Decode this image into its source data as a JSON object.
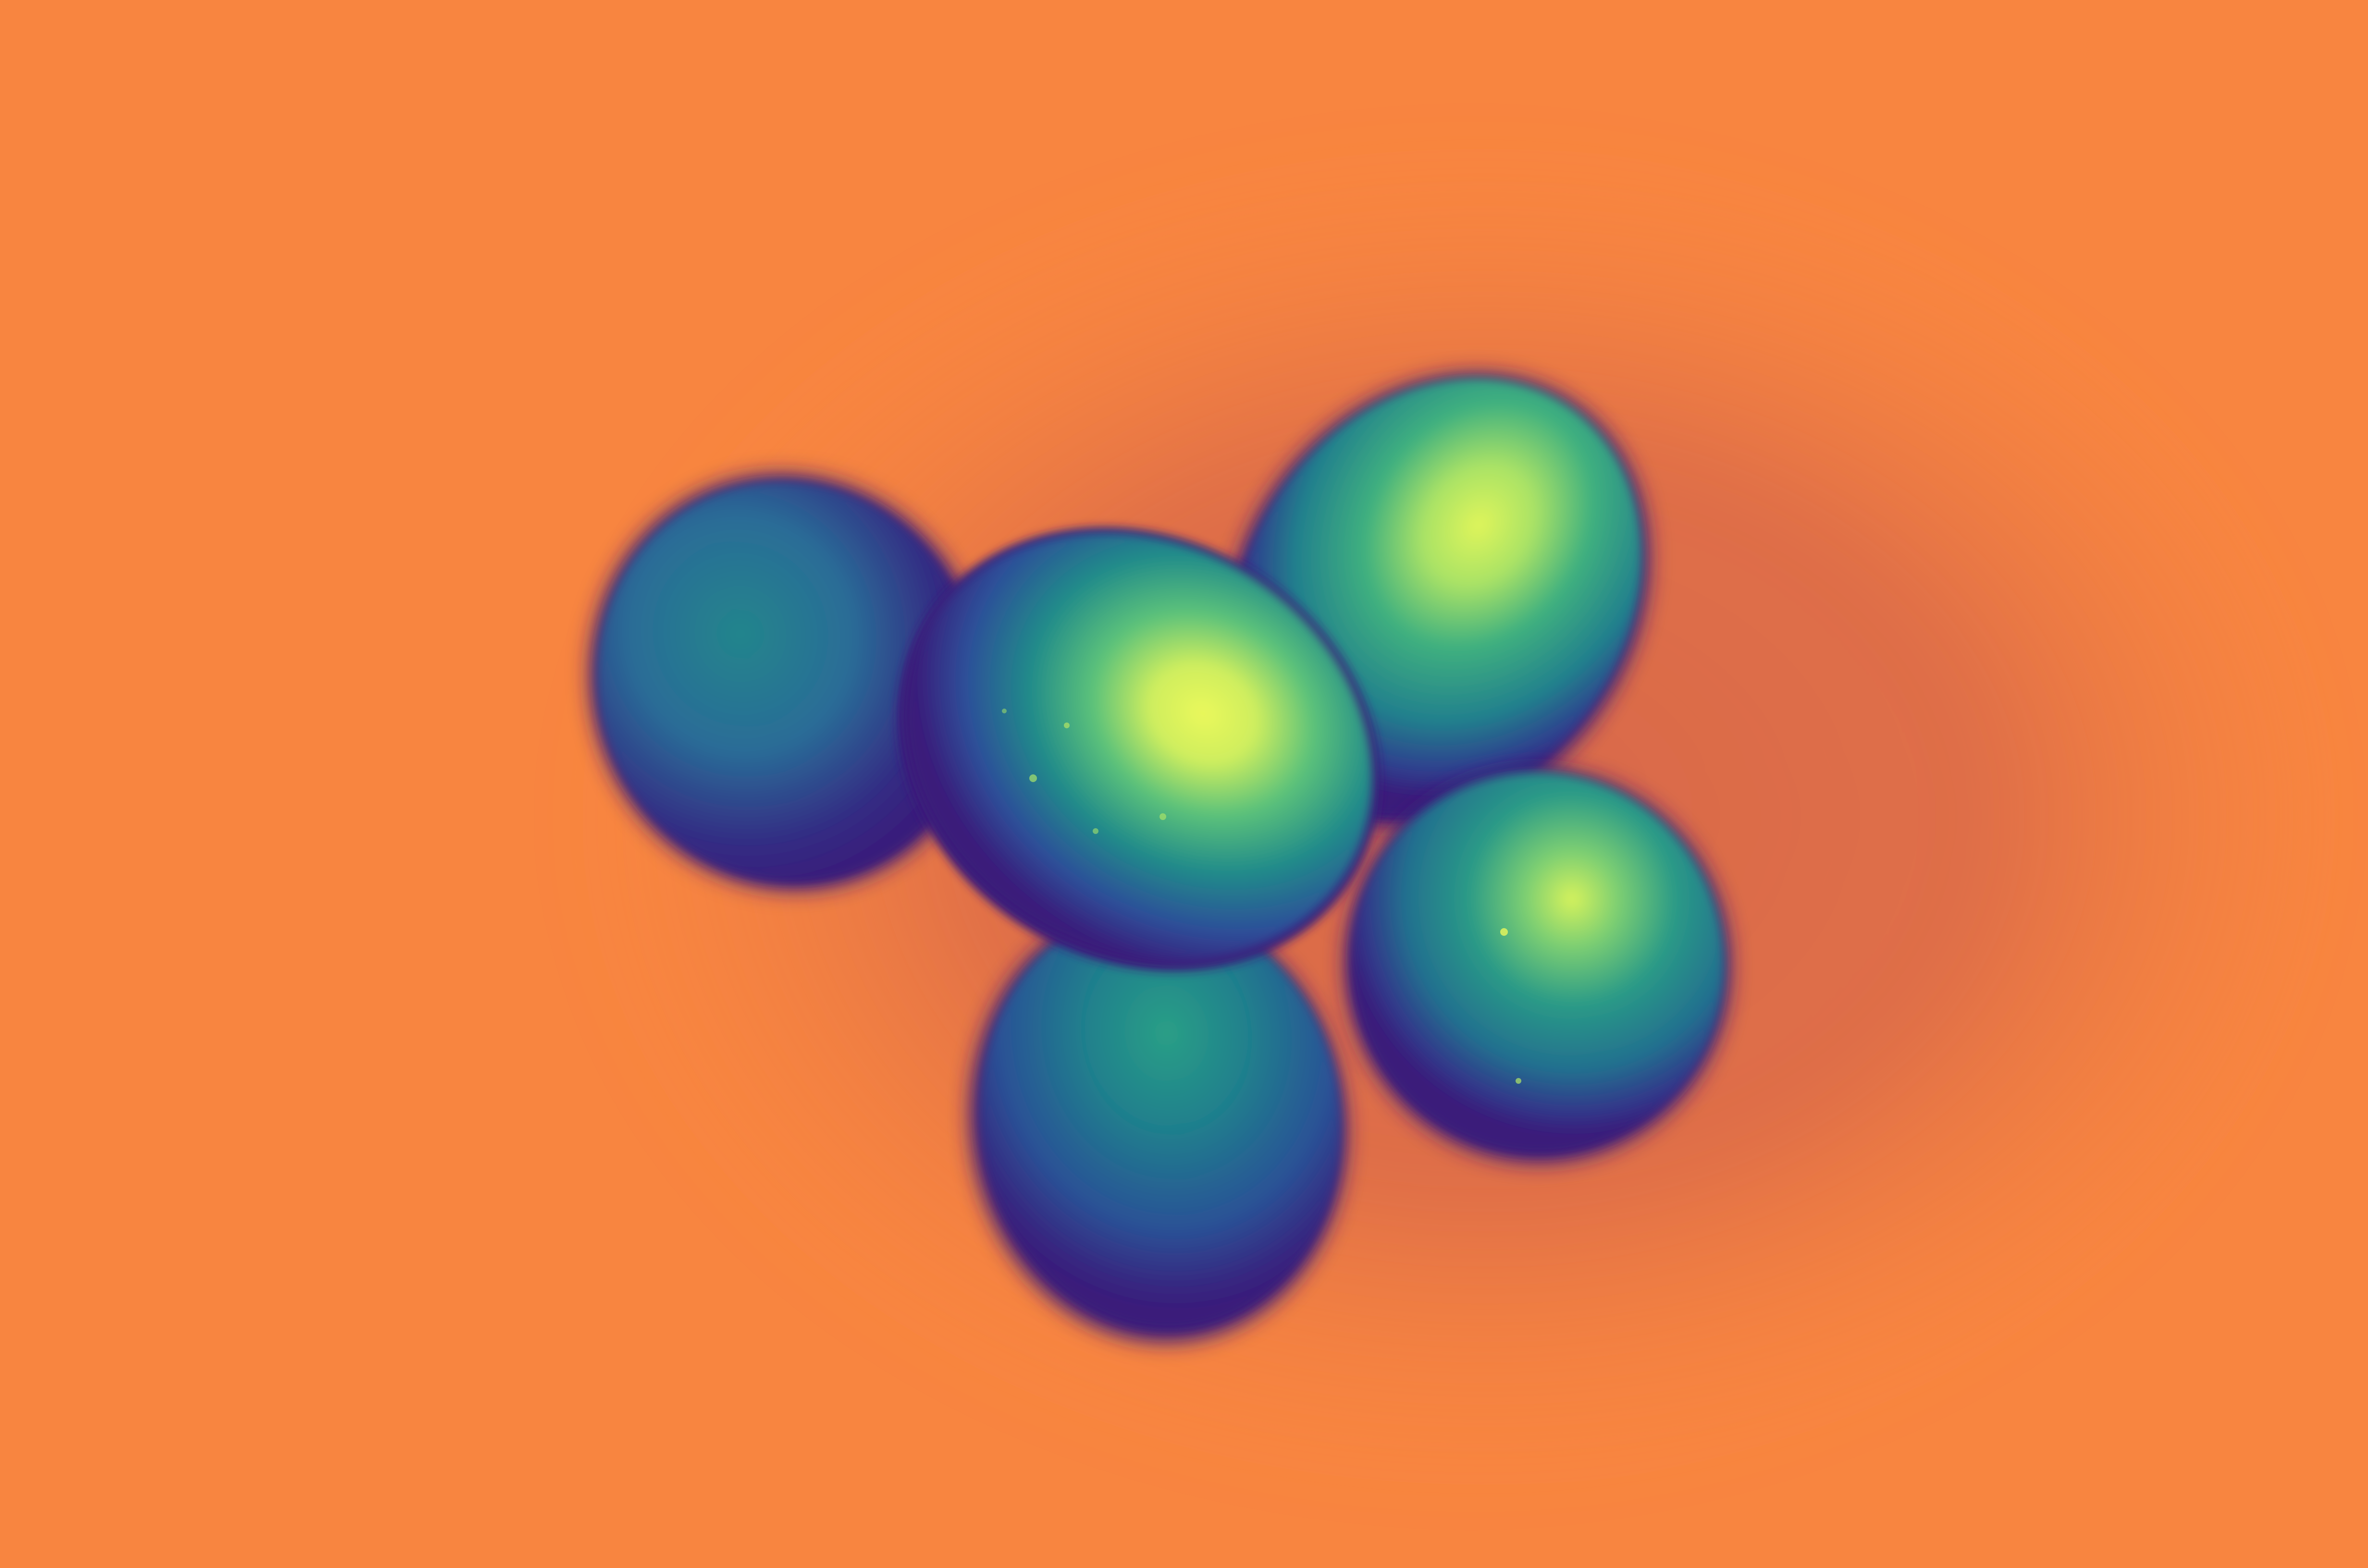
{
  "scene": {
    "subject": "five eggs",
    "style": "false-color (viridis-like) photograph"
  },
  "colors": {
    "background": "#f88540",
    "background_shadow": "#d8684a",
    "egg_dark": "#3a1b7a",
    "egg_mid_dark": "#2f4f9a",
    "egg_mid": "#1f7f8d",
    "egg_light": "#35b67e",
    "egg_highlight": "#e6f75a"
  },
  "objects": [
    {
      "name": "egg-left"
    },
    {
      "name": "egg-top-right"
    },
    {
      "name": "egg-center"
    },
    {
      "name": "egg-bottom"
    },
    {
      "name": "egg-right"
    }
  ]
}
